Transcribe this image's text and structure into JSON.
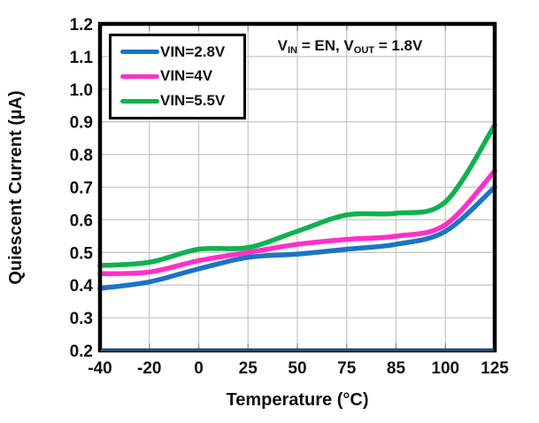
{
  "chart_data": {
    "type": "line",
    "title": "",
    "xlabel": "Temperature (°C)",
    "ylabel": "Quiescent Current (µA)",
    "categories": [
      "-40",
      "-20",
      "0",
      "25",
      "50",
      "75",
      "85",
      "100",
      "125"
    ],
    "y_ticks": [
      "0.2",
      "0.3",
      "0.4",
      "0.5",
      "0.6",
      "0.7",
      "0.8",
      "0.9",
      "1.0",
      "1.1",
      "1.2"
    ],
    "ylim": [
      0.2,
      1.2
    ],
    "grid": true,
    "legend_position": "top-left-inside",
    "series": [
      {
        "name": "VIN=2.8V",
        "color": "#1B74C4",
        "values": [
          0.39,
          0.41,
          0.45,
          0.485,
          0.495,
          0.51,
          0.525,
          0.565,
          0.7
        ]
      },
      {
        "name": "VIN=4V",
        "color": "#FF2FC8",
        "values": [
          0.435,
          0.44,
          0.475,
          0.5,
          0.525,
          0.54,
          0.55,
          0.585,
          0.75
        ]
      },
      {
        "name": "VIN=5.5V",
        "color": "#0EB150",
        "values": [
          0.46,
          0.47,
          0.51,
          0.515,
          0.565,
          0.615,
          0.62,
          0.655,
          0.89
        ]
      }
    ],
    "annotation": {
      "text": "VIN = EN, VOUT = 1.8V",
      "parts": [
        {
          "text": "V"
        },
        {
          "text": "IN",
          "sub": true
        },
        {
          "text": " = EN, V"
        },
        {
          "text": "OUT",
          "sub": true
        },
        {
          "text": " = 1.8V"
        }
      ]
    },
    "colors": {
      "background": "#FFFFFF",
      "plot_border": "#000000",
      "bottom_axis_line": "#1F4E79",
      "gridline": "#C8C8C8",
      "tick_mark": "#9A9A9A",
      "text": "#111111"
    }
  }
}
